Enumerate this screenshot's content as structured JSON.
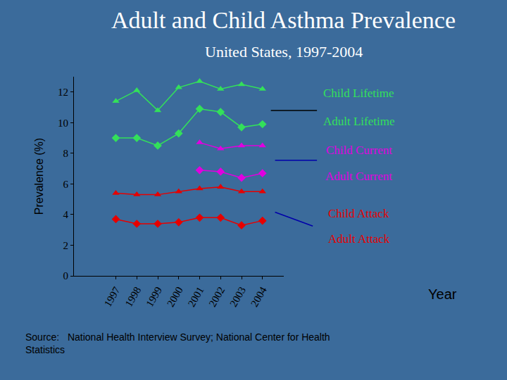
{
  "chart_data": {
    "type": "line",
    "title": "Adult and Child Asthma Prevalence",
    "subtitle": "United States, 1997-2004",
    "y_label": "Prevalence (%)",
    "x_label": "Year",
    "source": [
      "Source:   National Health Interview Survey; National Center for Health",
      "Statistics"
    ],
    "categories": [
      "1997",
      "1998",
      "1999",
      "2000",
      "2001",
      "2002",
      "2003",
      "2004"
    ],
    "ylim": [
      0,
      13
    ],
    "yticks": [
      0,
      2,
      4,
      6,
      8,
      10,
      12
    ],
    "grid": false,
    "series": [
      {
        "name": "Child Lifetime",
        "color": "#33e05a",
        "marker": "triangle",
        "line_style": "solid",
        "values": [
          11.4,
          12.1,
          10.8,
          12.3,
          12.7,
          12.2,
          12.5,
          12.2
        ]
      },
      {
        "name": "Adult Lifetime",
        "color": "#33e05a",
        "marker": "diamond",
        "line_style": "solid",
        "values": [
          9.0,
          9.0,
          8.5,
          9.3,
          10.9,
          10.7,
          9.7,
          9.9
        ]
      },
      {
        "name": "Child Current",
        "color": "#e000e0",
        "marker": "triangle",
        "line_style": "solid",
        "values": [
          null,
          null,
          null,
          null,
          8.7,
          8.3,
          8.5,
          8.5
        ]
      },
      {
        "name": "Adult Current",
        "color": "#e000e0",
        "marker": "diamond",
        "line_style": "solid",
        "values": [
          null,
          null,
          null,
          null,
          6.9,
          6.8,
          6.4,
          6.7
        ]
      },
      {
        "name": "Child Attack",
        "color": "#e60000",
        "marker": "triangle",
        "line_style": "solid",
        "values": [
          5.4,
          5.3,
          5.3,
          5.5,
          5.7,
          5.8,
          5.5,
          5.5
        ]
      },
      {
        "name": "Adult Attack",
        "color": "#e60000",
        "marker": "diamond",
        "line_style": "solid",
        "values": [
          3.7,
          3.4,
          3.4,
          3.5,
          3.8,
          3.8,
          3.3,
          3.6
        ]
      }
    ]
  }
}
